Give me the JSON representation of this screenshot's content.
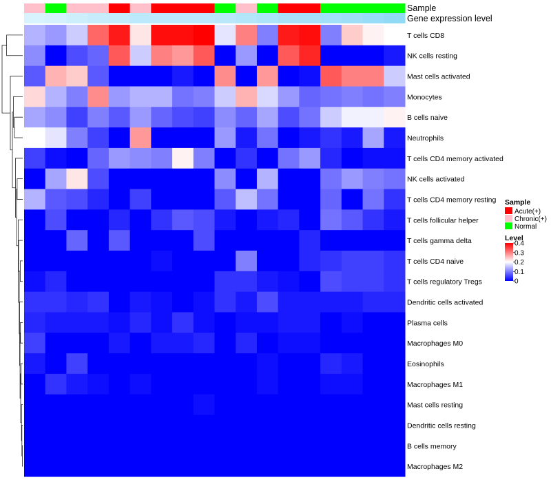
{
  "chart_data": {
    "type": "heatmap",
    "annotation_labels": {
      "sample": "Sample",
      "expression": "Gene expression level"
    },
    "sample_groups": [
      "Chronic(+)",
      "Normal",
      "Chronic(+)",
      "Chronic(+)",
      "Acute(+)",
      "Chronic(+)",
      "Acute(+)",
      "Acute(+)",
      "Acute(+)",
      "Normal",
      "Chronic(+)",
      "Normal",
      "Acute(+)",
      "Acute(+)",
      "Normal",
      "Normal",
      "Normal",
      "Normal"
    ],
    "expression_level": [
      0.1,
      0.12,
      0.18,
      0.22,
      0.26,
      0.3,
      0.3,
      0.3,
      0.3,
      0.32,
      0.36,
      0.4,
      0.44,
      0.46,
      0.5,
      0.52,
      0.56,
      0.62
    ],
    "rows": [
      {
        "label": "T cells CD8",
        "values": [
          0.14,
          0.12,
          0.16,
          0.32,
          0.38,
          0.22,
          0.39,
          0.39,
          0.4,
          0.18,
          0.3,
          0.1,
          0.38,
          0.39,
          0.1,
          0.24,
          0.21,
          0.2
        ]
      },
      {
        "label": "NK cells resting",
        "values": [
          0.11,
          0.0,
          0.06,
          0.08,
          0.33,
          0.16,
          0.3,
          0.28,
          0.33,
          0.0,
          0.12,
          0.0,
          0.33,
          0.37,
          0.0,
          0.0,
          0.0,
          0.02
        ]
      },
      {
        "label": "Mast cells activated",
        "values": [
          0.07,
          0.26,
          0.24,
          0.07,
          0.0,
          0.0,
          0.0,
          0.02,
          0.0,
          0.29,
          0.0,
          0.28,
          0.0,
          0.01,
          0.33,
          0.3,
          0.3,
          0.16
        ]
      },
      {
        "label": "Monocytes",
        "values": [
          0.23,
          0.14,
          0.1,
          0.29,
          0.12,
          0.14,
          0.14,
          0.09,
          0.1,
          0.16,
          0.26,
          0.17,
          0.12,
          0.08,
          0.09,
          0.1,
          0.09,
          0.1
        ]
      },
      {
        "label": "B cells naive",
        "values": [
          0.13,
          0.11,
          0.05,
          0.1,
          0.07,
          0.12,
          0.08,
          0.06,
          0.05,
          0.11,
          0.08,
          0.13,
          0.06,
          0.09,
          0.16,
          0.19,
          0.19,
          0.21
        ]
      },
      {
        "label": "Neutrophils",
        "values": [
          0.2,
          0.18,
          0.1,
          0.05,
          0.0,
          0.28,
          0.0,
          0.0,
          0.0,
          0.12,
          0.02,
          0.09,
          0.0,
          0.02,
          0.04,
          0.02,
          0.13,
          0.02
        ]
      },
      {
        "label": "T cells CD4 memory activated",
        "values": [
          0.05,
          0.01,
          0.0,
          0.08,
          0.12,
          0.11,
          0.1,
          0.21,
          0.1,
          0.0,
          0.04,
          0.0,
          0.09,
          0.12,
          0.03,
          0.0,
          0.01,
          0.01
        ]
      },
      {
        "label": "NK cells activated",
        "values": [
          0.0,
          0.13,
          0.22,
          0.06,
          0.0,
          0.0,
          0.0,
          0.0,
          0.0,
          0.11,
          0.0,
          0.14,
          0.0,
          0.0,
          0.09,
          0.12,
          0.1,
          0.09
        ]
      },
      {
        "label": "T cells CD4 memory resting",
        "values": [
          0.14,
          0.07,
          0.06,
          0.03,
          0.0,
          0.05,
          0.0,
          0.0,
          0.0,
          0.07,
          0.15,
          0.09,
          0.0,
          0.0,
          0.08,
          0.0,
          0.09,
          0.04
        ]
      },
      {
        "label": "T cells follicular helper",
        "values": [
          0.0,
          0.06,
          0.0,
          0.0,
          0.03,
          0.0,
          0.04,
          0.07,
          0.06,
          0.02,
          0.0,
          0.02,
          0.03,
          0.0,
          0.09,
          0.07,
          0.04,
          0.02
        ]
      },
      {
        "label": "T cells gamma delta",
        "values": [
          0.0,
          0.0,
          0.08,
          0.0,
          0.07,
          0.0,
          0.0,
          0.0,
          0.06,
          0.0,
          0.0,
          0.0,
          0.0,
          0.03,
          0.0,
          0.0,
          0.0,
          0.0
        ]
      },
      {
        "label": "T cells CD4 naive",
        "values": [
          0.0,
          0.0,
          0.0,
          0.0,
          0.0,
          0.0,
          0.01,
          0.0,
          0.0,
          0.0,
          0.1,
          0.0,
          0.0,
          0.03,
          0.04,
          0.05,
          0.05,
          0.04
        ]
      },
      {
        "label": "T cells regulatory  Tregs",
        "values": [
          0.01,
          0.03,
          0.0,
          0.0,
          0.0,
          0.0,
          0.0,
          0.0,
          0.0,
          0.04,
          0.04,
          0.02,
          0.01,
          0.0,
          0.06,
          0.05,
          0.05,
          0.04
        ]
      },
      {
        "label": "Dendritic cells activated",
        "values": [
          0.04,
          0.04,
          0.03,
          0.04,
          0.0,
          0.02,
          0.01,
          0.0,
          0.01,
          0.04,
          0.02,
          0.06,
          0.02,
          0.02,
          0.02,
          0.02,
          0.03,
          0.03
        ]
      },
      {
        "label": "Plasma cells",
        "values": [
          0.03,
          0.02,
          0.02,
          0.02,
          0.01,
          0.03,
          0.01,
          0.04,
          0.01,
          0.0,
          0.01,
          0.01,
          0.02,
          0.02,
          0.0,
          0.01,
          0.0,
          0.0
        ]
      },
      {
        "label": "Macrophages M0",
        "values": [
          0.05,
          0.0,
          0.0,
          0.0,
          0.02,
          0.0,
          0.02,
          0.02,
          0.03,
          0.0,
          0.03,
          0.0,
          0.01,
          0.01,
          0.0,
          0.0,
          0.0,
          0.0
        ]
      },
      {
        "label": "Eosinophils",
        "values": [
          0.02,
          0.0,
          0.05,
          0.0,
          0.0,
          0.0,
          0.0,
          0.0,
          0.0,
          0.0,
          0.0,
          0.01,
          0.0,
          0.0,
          0.03,
          0.02,
          0.0,
          0.0
        ]
      },
      {
        "label": "Macrophages M1",
        "values": [
          0.0,
          0.04,
          0.02,
          0.01,
          0.0,
          0.01,
          0.0,
          0.0,
          0.0,
          0.0,
          0.0,
          0.01,
          0.0,
          0.0,
          0.01,
          0.01,
          0.0,
          0.0
        ]
      },
      {
        "label": "Mast cells resting",
        "values": [
          0.0,
          0.0,
          0.0,
          0.0,
          0.0,
          0.0,
          0.0,
          0.0,
          0.01,
          0.0,
          0.0,
          0.0,
          0.0,
          0.0,
          0.0,
          0.0,
          0.0,
          0.0
        ]
      },
      {
        "label": "Dendritic cells resting",
        "values": [
          0.0,
          0.0,
          0.0,
          0.0,
          0.0,
          0.0,
          0.0,
          0.0,
          0.0,
          0.0,
          0.0,
          0.0,
          0.0,
          0.0,
          0.0,
          0.0,
          0.0,
          0.0
        ]
      },
      {
        "label": "B cells memory",
        "values": [
          0.0,
          0.0,
          0.0,
          0.0,
          0.0,
          0.0,
          0.0,
          0.0,
          0.0,
          0.0,
          0.0,
          0.0,
          0.0,
          0.0,
          0.0,
          0.0,
          0.0,
          0.0
        ]
      },
      {
        "label": "Macrophages M2",
        "values": [
          0.0,
          0.0,
          0.0,
          0.0,
          0.0,
          0.0,
          0.0,
          0.0,
          0.0,
          0.0,
          0.0,
          0.0,
          0.0,
          0.0,
          0.0,
          0.0,
          0.0,
          0.0
        ]
      }
    ],
    "dendrogram": [
      {
        "left": 20,
        "right": 21,
        "h": 0.02
      },
      {
        "left": 19,
        "right": 22,
        "h": 0.04
      },
      {
        "left": 18,
        "right": 23,
        "h": 0.06
      },
      {
        "left": 16,
        "right": 17,
        "h": 0.08
      },
      {
        "left": 24,
        "right": 25,
        "h": 0.1
      },
      {
        "left": 14,
        "right": 15,
        "h": 0.11
      },
      {
        "left": 26,
        "right": 27,
        "h": 0.13
      },
      {
        "left": 13,
        "right": 28,
        "h": 0.15
      },
      {
        "left": 11,
        "right": 12,
        "h": 0.12
      },
      {
        "left": 29,
        "right": 30,
        "h": 0.17
      },
      {
        "left": 10,
        "right": 31,
        "h": 0.2
      },
      {
        "left": 9,
        "right": 32,
        "h": 0.22
      },
      {
        "left": 7,
        "right": 8,
        "h": 0.27
      },
      {
        "left": 33,
        "right": 34,
        "h": 0.3
      },
      {
        "left": 6,
        "right": 35,
        "h": 0.35
      },
      {
        "left": 4,
        "right": 5,
        "h": 0.4
      },
      {
        "left": 3,
        "right": 37,
        "h": 0.45
      },
      {
        "left": 36,
        "right": 38,
        "h": 0.5
      },
      {
        "left": 2,
        "right": 39,
        "h": 0.6
      },
      {
        "left": 0,
        "right": 1,
        "h": 0.78
      },
      {
        "left": 40,
        "right": 41,
        "h": 1.0
      }
    ],
    "legend": {
      "sample_title": "Sample",
      "sample_items": [
        {
          "label": "Acute(+)",
          "color": "#ff0000"
        },
        {
          "label": "Chronic(+)",
          "color": "#ffc0cb"
        },
        {
          "label": "Normal",
          "color": "#00ff00"
        }
      ],
      "level_title": "Level",
      "level_ticks": [
        "0.4",
        "0.3",
        "0.2",
        "0.1",
        "0"
      ],
      "level_tick_values": [
        0.4,
        0.3,
        0.2,
        0.1,
        0
      ],
      "level_range": [
        0,
        0.4
      ],
      "expression_colors": [
        "#e6f7ff",
        "#5bc8f0"
      ]
    },
    "colorscale": [
      "#0000ff",
      "#ffffff",
      "#ff0000"
    ]
  }
}
